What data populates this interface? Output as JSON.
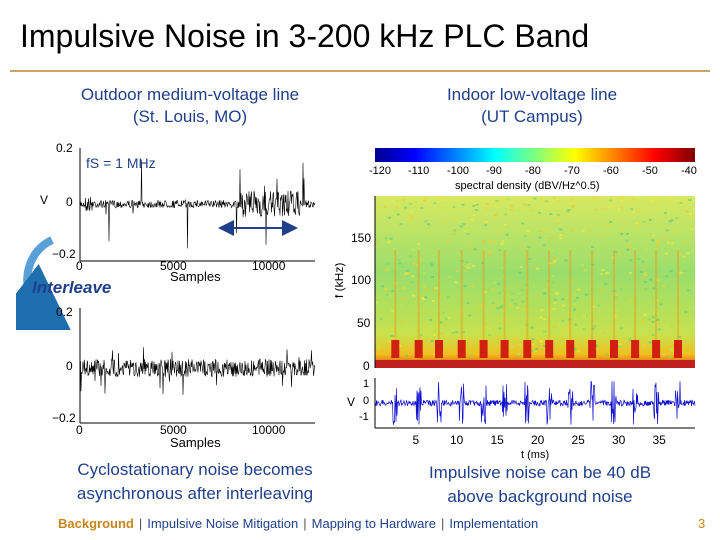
{
  "title": "Impulsive Noise in 3-200 kHz PLC Band",
  "left_caption": [
    "Outdoor medium-voltage line",
    "(St. Louis, MO)"
  ],
  "right_caption": [
    "Indoor low-voltage line",
    "(UT Campus)"
  ],
  "interleave_label": "Interleave",
  "left_note": [
    "Cyclostationary noise becomes",
    "asynchronous after interleaving"
  ],
  "right_note": [
    "Impulsive noise can be 40 dB",
    "above background noise"
  ],
  "footer": {
    "items": [
      "Background",
      "Impulsive Noise Mitigation",
      "Mapping to Hardware",
      "Implementation"
    ],
    "separator": "|",
    "active_index": 0
  },
  "page_number": "3",
  "colors": {
    "title_rule": "#d2a264",
    "text_blue": "#1f3f8a",
    "footer_active": "#c7851d"
  },
  "chart_data": [
    {
      "type": "line",
      "annotation": "fS = 1 MHz",
      "ylabel": "V",
      "xlabel": "Samples",
      "xlim": [
        0,
        12000
      ],
      "ylim": [
        -0.2,
        0.2
      ],
      "x_ticks": [
        "0",
        "5000",
        "10000"
      ],
      "y_ticks": [
        "0.2",
        "0",
        "−0.2"
      ]
    },
    {
      "type": "line",
      "ylabel": "V",
      "xlabel": "Samples",
      "xlim": [
        0,
        12000
      ],
      "ylim": [
        -0.2,
        0.2
      ],
      "x_ticks": [
        "0",
        "5000",
        "10000"
      ],
      "y_ticks": [
        "0.2",
        "0",
        "−0.2"
      ]
    },
    {
      "type": "heatmap",
      "colorbar_label": "spectral density (dBV/Hz^0.5)",
      "colorbar_ticks": [
        "-120",
        "-110",
        "-100",
        "-90",
        "-80",
        "-70",
        "-60",
        "-50",
        "-40"
      ],
      "ylabel": "f (kHz)",
      "y_ticks": [
        "150",
        "100",
        "50",
        "0"
      ],
      "ylim": [
        0,
        200
      ],
      "impulse_times_ms": [
        2.5,
        5.4,
        7.9,
        10.7,
        13.4,
        16.0,
        18.8,
        21.5,
        24.1,
        26.8,
        29.5,
        32.1,
        34.7,
        37.4
      ]
    },
    {
      "type": "line",
      "ylabel": "V",
      "xlabel": "t (ms)",
      "y_ticks": [
        "1",
        "0",
        "-1"
      ],
      "x_ticks": [
        "5",
        "10",
        "15",
        "20",
        "25",
        "30",
        "35"
      ],
      "xlim": [
        0,
        39.5
      ],
      "ylim": [
        -1.5,
        1.5
      ]
    }
  ]
}
